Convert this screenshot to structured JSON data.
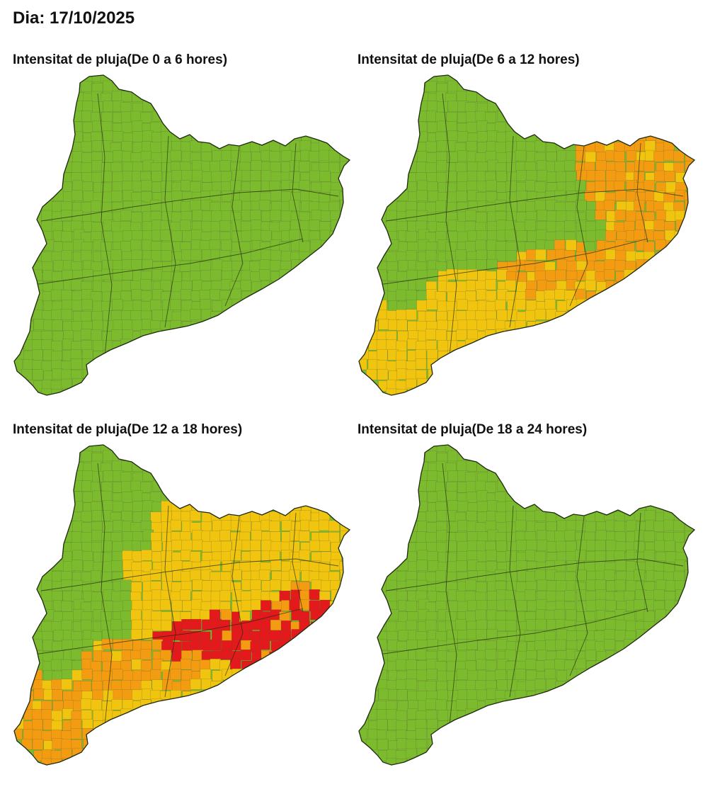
{
  "header": {
    "title": "Dia: 17/10/2025"
  },
  "legend_colors": {
    "none": "#7dbb2e",
    "low": "#f1c40f",
    "moderate": "#f39c12",
    "high": "#e3191c"
  },
  "region": "Catalunya",
  "panels": [
    {
      "title": "Intensitat de pluja(De 0 a 6 hores)",
      "zones": {
        "northwest": "none",
        "northeast": "none",
        "center": "none",
        "southwest": "none",
        "coast": "none",
        "metro": "none",
        "southcoast": "none"
      }
    },
    {
      "title": "Intensitat de pluja(De 6 a 12 hores)",
      "zones": {
        "northwest": "none",
        "northeast": "moderate",
        "center": "none",
        "southwest": "low",
        "coast": "low",
        "metro": "moderate",
        "southcoast": "low"
      }
    },
    {
      "title": "Intensitat de pluja(De 12 a 18 hores)",
      "zones": {
        "northwest": "none",
        "northeast": "low",
        "center": "low",
        "southwest": "moderate",
        "coast": "moderate",
        "metro": "high",
        "southcoast": "low"
      }
    },
    {
      "title": "Intensitat de pluja(De 18 a 24 hores)",
      "zones": {
        "northwest": "none",
        "northeast": "none",
        "center": "none",
        "southwest": "none",
        "coast": "none",
        "metro": "none",
        "southcoast": "none"
      }
    }
  ]
}
